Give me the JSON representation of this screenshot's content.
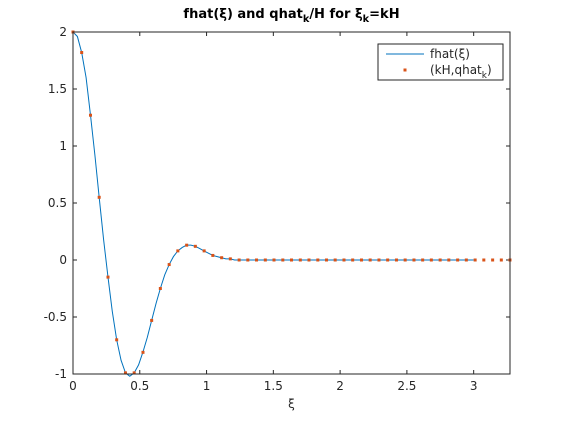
{
  "chart_data": {
    "type": "line",
    "title": [
      {
        "text": "fhat(ξ) and qhat"
      },
      {
        "text": "k",
        "sub": true
      },
      {
        "text": "/H for ξ"
      },
      {
        "text": "k",
        "sub": true
      },
      {
        "text": "=kH"
      }
    ],
    "xlabel": "ξ",
    "xlim": [
      0,
      3.272
    ],
    "ylim": [
      -1,
      2
    ],
    "xticks": [
      0,
      0.5,
      1,
      1.5,
      2,
      2.5,
      3
    ],
    "yticks": [
      -1,
      -0.5,
      0,
      0.5,
      1,
      1.5,
      2
    ],
    "legend": "upper right",
    "series": [
      {
        "type": "line",
        "name": [
          {
            "text": "fhat(ξ)"
          }
        ],
        "color": "#0072bd",
        "x": [
          0,
          0.033,
          0.065,
          0.098,
          0.131,
          0.164,
          0.196,
          0.229,
          0.262,
          0.294,
          0.327,
          0.36,
          0.393,
          0.425,
          0.458,
          0.491,
          0.523,
          0.556,
          0.589,
          0.622,
          0.654,
          0.687,
          0.72,
          0.752,
          0.785,
          0.818,
          0.85,
          0.883,
          0.916,
          0.949,
          0.981,
          1.014,
          1.047,
          1.08,
          1.112,
          1.145,
          1.178,
          1.21,
          1.5,
          2,
          2.5,
          3
        ],
        "values": [
          2,
          1.96,
          1.82,
          1.6,
          1.27,
          0.92,
          0.55,
          0.18,
          -0.15,
          -0.45,
          -0.7,
          -0.88,
          -0.99,
          -1.02,
          -0.99,
          -0.92,
          -0.81,
          -0.68,
          -0.53,
          -0.38,
          -0.25,
          -0.13,
          -0.04,
          0.03,
          0.08,
          0.11,
          0.13,
          0.13,
          0.12,
          0.1,
          0.08,
          0.06,
          0.04,
          0.03,
          0.02,
          0.01,
          0.01,
          0,
          0,
          0,
          0,
          0
        ]
      },
      {
        "type": "scatter",
        "name": [
          {
            "text": "(kH,qhat"
          },
          {
            "text": "k",
            "sub": true
          },
          {
            "text": ")"
          }
        ],
        "color": "#d95319",
        "x": [
          0,
          0.065,
          0.131,
          0.196,
          0.262,
          0.327,
          0.393,
          0.458,
          0.524,
          0.589,
          0.654,
          0.72,
          0.785,
          0.851,
          0.916,
          0.982,
          1.047,
          1.113,
          1.178,
          1.244,
          1.309,
          1.374,
          1.44,
          1.505,
          1.571,
          1.636,
          1.702,
          1.767,
          1.833,
          1.898,
          1.963,
          2.029,
          2.094,
          2.16,
          2.225,
          2.291,
          2.356,
          2.422,
          2.487,
          2.553,
          2.618,
          2.683,
          2.749,
          2.814,
          2.88,
          2.945,
          3.011,
          3.076,
          3.142,
          3.207,
          3.272
        ],
        "values": [
          2,
          1.82,
          1.27,
          0.55,
          -0.15,
          -0.7,
          -0.99,
          -0.99,
          -0.81,
          -0.53,
          -0.25,
          -0.04,
          0.08,
          0.13,
          0.12,
          0.08,
          0.04,
          0.02,
          0.01,
          0,
          0,
          0,
          0,
          0,
          0,
          0,
          0,
          0,
          0,
          0,
          0,
          0,
          0,
          0,
          0,
          0,
          0,
          0,
          0,
          0,
          0,
          0,
          0,
          0,
          0,
          0,
          0,
          0,
          0,
          0,
          0
        ]
      }
    ]
  }
}
